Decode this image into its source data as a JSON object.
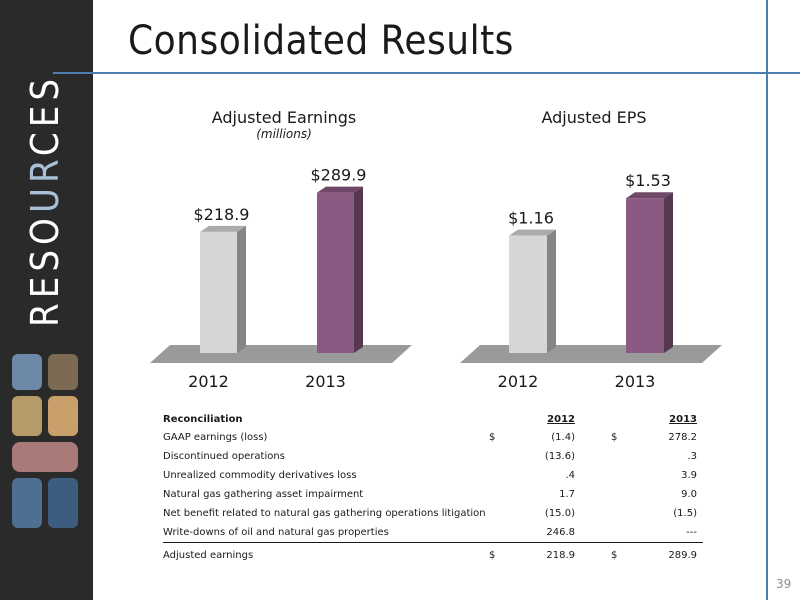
{
  "brand": {
    "word_parts": [
      "RESO",
      "UR",
      "CES"
    ],
    "accent_color": "#a8c0d8",
    "sidebar_color": "#2a2a2a"
  },
  "page": {
    "title": "Consolidated Results",
    "page_number": "39",
    "rule_color": "#4c7fae"
  },
  "chart_data": [
    {
      "type": "bar",
      "title": "Adjusted Earnings",
      "subtitle": "(millions)",
      "categories": [
        "2012",
        "2013"
      ],
      "values": [
        218.9,
        289.9
      ],
      "value_labels": [
        "$218.9",
        "$289.9"
      ],
      "colors": [
        "#d6d6d6",
        "#8b5a82"
      ],
      "ylim": [
        0,
        320
      ]
    },
    {
      "type": "bar",
      "title": "Adjusted EPS",
      "categories": [
        "2012",
        "2013"
      ],
      "values": [
        1.16,
        1.53
      ],
      "value_labels": [
        "$1.16",
        "$1.53"
      ],
      "colors": [
        "#d6d6d6",
        "#8b5a82"
      ],
      "ylim": [
        0,
        1.7
      ]
    }
  ],
  "reconciliation": {
    "header": "Reconciliation",
    "year1": "2012",
    "year2": "2013",
    "rows": [
      {
        "label": "GAAP earnings (loss)",
        "cur1": "$",
        "v1": "(1.4)",
        "cur2": "$",
        "v2": "278.2"
      },
      {
        "label": "Discontinued operations",
        "cur1": "",
        "v1": "(13.6)",
        "cur2": "",
        "v2": ".3"
      },
      {
        "label": "Unrealized commodity derivatives loss",
        "cur1": "",
        "v1": ".4",
        "cur2": "",
        "v2": "3.9"
      },
      {
        "label": "Natural gas gathering asset impairment",
        "cur1": "",
        "v1": "1.7",
        "cur2": "",
        "v2": "9.0"
      },
      {
        "label": "Net benefit related to natural gas gathering operations litigation",
        "cur1": "",
        "v1": "(15.0)",
        "cur2": "",
        "v2": "(1.5)"
      },
      {
        "label": "Write-downs of oil and natural gas properties",
        "cur1": "",
        "v1": "246.8",
        "cur2": "",
        "v2": "---"
      }
    ],
    "total": {
      "label": "Adjusted earnings",
      "cur1": "$",
      "v1": "218.9",
      "cur2": "$",
      "v2": "289.9"
    }
  }
}
